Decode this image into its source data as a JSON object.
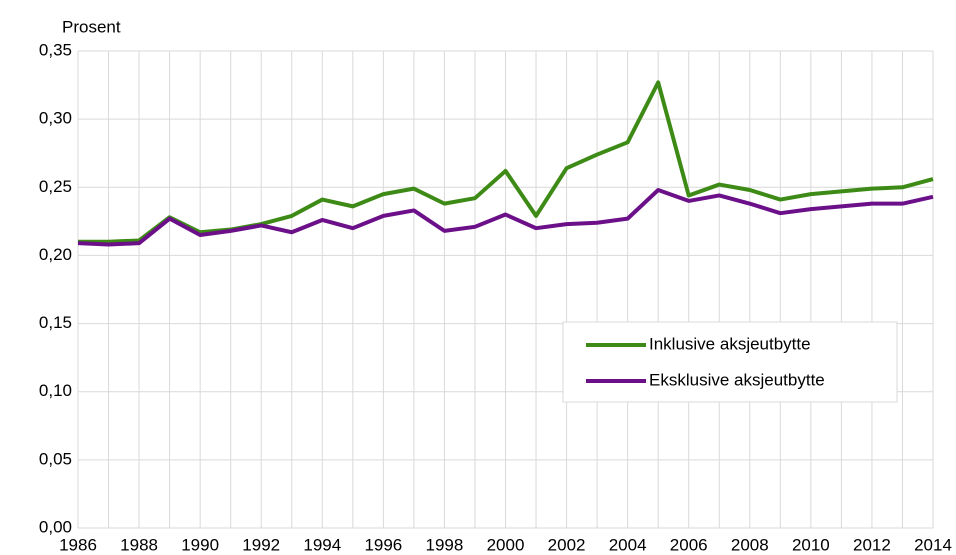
{
  "chart_data": {
    "type": "line",
    "y_axis_label": "Prosent",
    "x": [
      1986,
      1987,
      1988,
      1989,
      1990,
      1991,
      1992,
      1993,
      1994,
      1995,
      1996,
      1997,
      1998,
      1999,
      2000,
      2001,
      2002,
      2003,
      2004,
      2005,
      2006,
      2007,
      2008,
      2009,
      2010,
      2011,
      2012,
      2013,
      2014
    ],
    "series": [
      {
        "name": "Inklusive aksjeutbytte",
        "color": "#3d8b16",
        "values": [
          0.21,
          0.21,
          0.211,
          0.228,
          0.217,
          0.219,
          0.223,
          0.229,
          0.241,
          0.236,
          0.245,
          0.249,
          0.238,
          0.242,
          0.262,
          0.229,
          0.264,
          0.274,
          0.283,
          0.327,
          0.244,
          0.252,
          0.248,
          0.241,
          0.245,
          0.247,
          0.249,
          0.25,
          0.256
        ]
      },
      {
        "name": "Eksklusive aksjeutbytte",
        "color": "#6b1088",
        "values": [
          0.209,
          0.208,
          0.209,
          0.227,
          0.215,
          0.218,
          0.222,
          0.217,
          0.226,
          0.22,
          0.229,
          0.233,
          0.218,
          0.221,
          0.23,
          0.22,
          0.223,
          0.224,
          0.227,
          0.248,
          0.24,
          0.244,
          0.238,
          0.231,
          0.234,
          0.236,
          0.238,
          0.238,
          0.243
        ]
      }
    ],
    "xlim": [
      1986,
      2014
    ],
    "xticks": [
      1986,
      1988,
      1990,
      1992,
      1994,
      1996,
      1998,
      2000,
      2002,
      2004,
      2006,
      2008,
      2010,
      2012,
      2014
    ],
    "ylim": [
      0,
      0.35
    ],
    "yticks": [
      {
        "value": 0,
        "label": "0,00"
      },
      {
        "value": 0.05,
        "label": "0,05"
      },
      {
        "value": 0.1,
        "label": "0,10"
      },
      {
        "value": 0.15,
        "label": "0,15"
      },
      {
        "value": 0.2,
        "label": "0,20"
      },
      {
        "value": 0.25,
        "label": "0,25"
      },
      {
        "value": 0.3,
        "label": "0,30"
      },
      {
        "value": 0.35,
        "label": "0,35"
      }
    ],
    "grid": true,
    "legend": "right"
  }
}
